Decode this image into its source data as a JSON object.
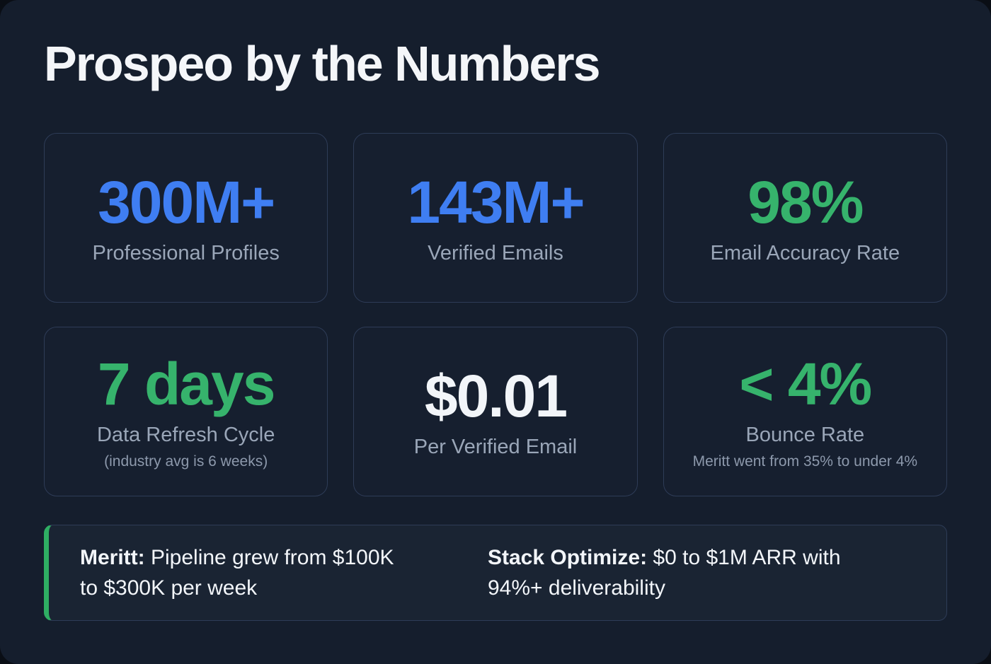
{
  "title": "Prospeo by the Numbers",
  "colors": {
    "panel_background": "#151e2d",
    "outer_background": "#0a0e15",
    "card_border": "#2e3c57",
    "accent_blue": "#3f7ef2",
    "accent_green": "#36b36c",
    "value_white": "#f2f5f9",
    "label_gray": "#9aa6b8",
    "banner_accent": "#2fae63",
    "banner_background": "#1a2433"
  },
  "stats": [
    {
      "value": "300M+",
      "label": "Professional Profiles",
      "color": "#3f7ef2"
    },
    {
      "value": "143M+",
      "label": "Verified Emails",
      "color": "#3f7ef2"
    },
    {
      "value": "98%",
      "label": "Email Accuracy Rate",
      "color": "#36b36c"
    },
    {
      "value": "7 days",
      "label": "Data Refresh Cycle",
      "note": "(industry avg is 6 weeks)",
      "color": "#36b36c"
    },
    {
      "value": "$0.01",
      "label": "Per Verified Email",
      "color": "#f2f5f9"
    },
    {
      "value": "< 4%",
      "label": "Bounce Rate",
      "note": "Meritt went from 35% to under 4%",
      "color": "#36b36c"
    }
  ],
  "banner": {
    "left": {
      "lead": "Meritt:",
      "text": "Pipeline grew from $100K to $300K per week"
    },
    "right": {
      "lead": "Stack Optimize:",
      "text": "$0 to $1M ARR with 94%+ deliverability"
    }
  },
  "chart_data": {
    "type": "table",
    "title": "Prospeo by the Numbers",
    "columns": [
      "metric",
      "value",
      "note"
    ],
    "rows": [
      [
        "Professional Profiles",
        "300M+",
        ""
      ],
      [
        "Verified Emails",
        "143M+",
        ""
      ],
      [
        "Email Accuracy Rate",
        "98%",
        ""
      ],
      [
        "Data Refresh Cycle",
        "7 days",
        "(industry avg is 6 weeks)"
      ],
      [
        "Per Verified Email",
        "$0.01",
        ""
      ],
      [
        "Bounce Rate",
        "< 4%",
        "Meritt went from 35% to under 4%"
      ]
    ],
    "annotations": [
      "Meritt: Pipeline grew from $100K to $300K per week",
      "Stack Optimize: $0 to $1M ARR with 94%+ deliverability"
    ]
  }
}
